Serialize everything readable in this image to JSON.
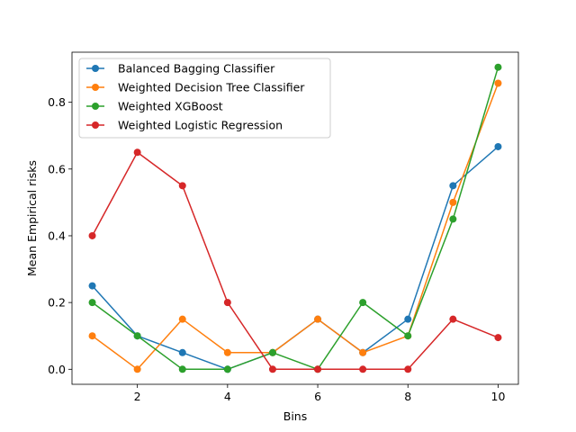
{
  "chart_data": {
    "type": "line",
    "xlabel": "Bins",
    "ylabel": "Mean Empirical risks",
    "xlim": [
      0.55,
      10.45
    ],
    "ylim": [
      -0.045,
      0.95
    ],
    "xticks": [
      2,
      4,
      6,
      8,
      10
    ],
    "yticks": [
      0.0,
      0.2,
      0.4,
      0.6,
      0.8
    ],
    "grid": false,
    "legend_position": "top-left",
    "x": [
      1,
      2,
      3,
      4,
      5,
      6,
      7,
      8,
      9,
      10
    ],
    "series": [
      {
        "name": "Balanced Bagging Classifier",
        "color": "#1f77b4",
        "values": [
          0.25,
          0.1,
          0.05,
          0.0,
          0.05,
          0.15,
          0.05,
          0.15,
          0.55,
          0.667
        ]
      },
      {
        "name": "Weighted Decision Tree Classifier",
        "color": "#ff7f0e",
        "values": [
          0.1,
          0.0,
          0.15,
          0.05,
          0.05,
          0.15,
          0.05,
          0.1,
          0.5,
          0.857
        ]
      },
      {
        "name": "Weighted XGBoost",
        "color": "#2ca02c",
        "values": [
          0.2,
          0.1,
          0.0,
          0.0,
          0.05,
          0.0,
          0.2,
          0.1,
          0.45,
          0.905
        ]
      },
      {
        "name": "Weighted Logistic Regression",
        "color": "#d62728",
        "values": [
          0.4,
          0.65,
          0.55,
          0.2,
          0.0,
          0.0,
          0.0,
          0.0,
          0.15,
          0.095
        ]
      }
    ]
  }
}
